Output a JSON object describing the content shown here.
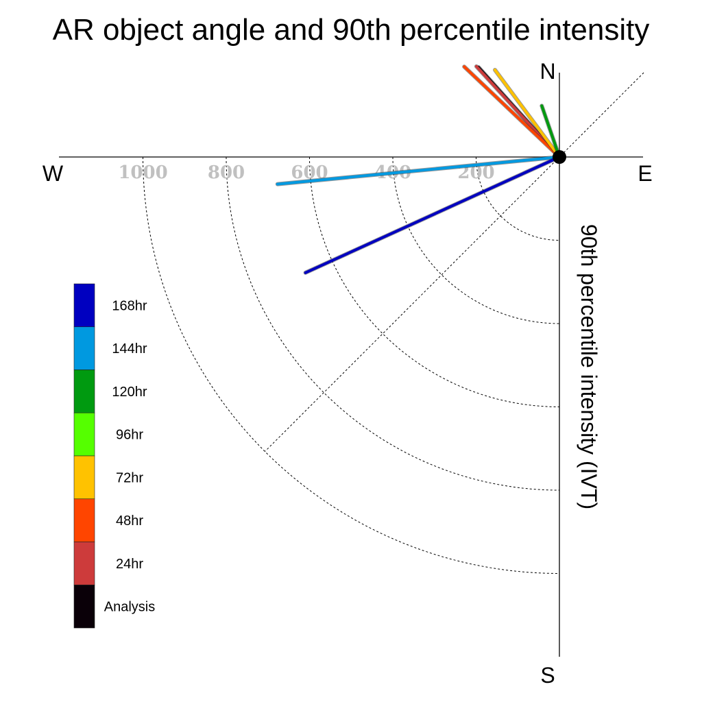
{
  "chart_data": {
    "type": "polar-line",
    "title": "AR object angle and 90th percentile intensity",
    "ylabel": "90th percentile intensity (IVT)",
    "compass": {
      "north": "N",
      "south": "S",
      "east": "E",
      "west": "W"
    },
    "r_ticks": [
      "200",
      "400",
      "600",
      "800",
      "1000"
    ],
    "r_tick_values": [
      200,
      400,
      600,
      800,
      1000
    ],
    "r_max": 1000,
    "grid": true,
    "legend": {
      "placement": "left",
      "entries": [
        {
          "label": "168hr",
          "color": "#0000c0"
        },
        {
          "label": "144hr",
          "color": "#0099e0"
        },
        {
          "label": "120hr",
          "color": "#009a10"
        },
        {
          "label": "96hr",
          "color": "#55ff00"
        },
        {
          "label": "72hr",
          "color": "#ffc200"
        },
        {
          "label": "48hr",
          "color": "#ff4500"
        },
        {
          "label": "24hr",
          "color": "#cd3b3b"
        },
        {
          "label": "Analysis",
          "color": "#0a0008"
        }
      ]
    },
    "series": [
      {
        "name": "Analysis",
        "color": "#0a0008",
        "angle_deg": 132.0,
        "intensity": 290
      },
      {
        "name": "24hr",
        "color": "#cd3b3b",
        "angle_deg": 132.5,
        "intensity": 295
      },
      {
        "name": "48hr",
        "color": "#ff4500",
        "angle_deg": 136.5,
        "intensity": 315
      },
      {
        "name": "72hr",
        "color": "#ffc200",
        "angle_deg": 126.5,
        "intensity": 260
      },
      {
        "name": "120hr",
        "color": "#009a10",
        "angle_deg": 109.0,
        "intensity": 130
      },
      {
        "name": "144hr",
        "color": "#0099e0",
        "angle_deg": 185.5,
        "intensity": 680
      },
      {
        "name": "168hr",
        "color": "#0000c0",
        "angle_deg": 204.5,
        "intensity": 670
      }
    ]
  }
}
